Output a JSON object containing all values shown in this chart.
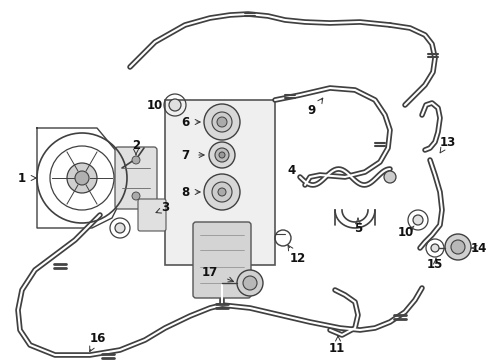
{
  "bg_color": "#ffffff",
  "line_color": "#404040",
  "lw_hose": 1.0,
  "lw_part": 0.9,
  "figsize": [
    4.89,
    3.6
  ],
  "dpi": 100,
  "font_size": 8.5,
  "arrow_lw": 0.7
}
